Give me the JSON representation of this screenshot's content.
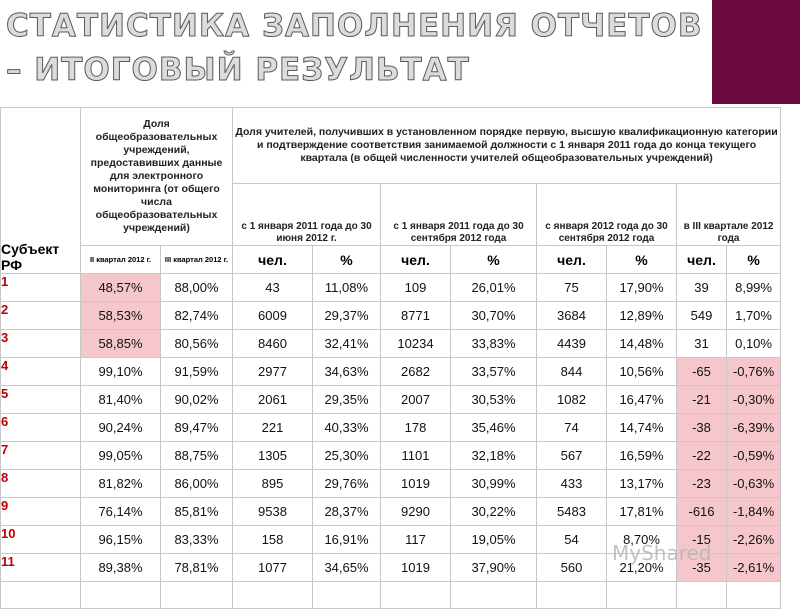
{
  "title_line1": "СТАТИСТИКА ЗАПОЛНЕНИЯ ОТЧЕТОВ",
  "title_line2": "– ИТОГОВЫЙ РЕЗУЛЬТАТ",
  "header": {
    "subject": "Субъект РФ",
    "group1": "Доля общеобразовательных учреждений, предоставивших данные для электронного мониторинга (от общего числа общеобразовательных учреждений)",
    "group2": "Доля учителей, получивших в установленном порядке первую, высшую квалификационную категории и подтверждение соответствия занимаемой должности с 1 января 2011 года до конца текущего квартала (в общей численности учителей общеобразовательных учреждений)",
    "q2": "II квартал 2012 г.",
    "q3": "III квартал 2012 г.",
    "period1": "с 1 января 2011 года до 30 июня 2012 г.",
    "period2": "с 1 января 2011 года до 30 сентября 2012 года",
    "period3": "с января 2012 года до 30 сентября 2012 года",
    "period4": "в III квартале 2012 года",
    "unit_count": "чел.",
    "unit_pct": "%"
  },
  "rows": [
    {
      "subject": "1",
      "q2": "48,57%",
      "q3": "88,00%",
      "p1c": "43",
      "p1p": "11,08%",
      "p2c": "109",
      "p2p": "26,01%",
      "p3c": "75",
      "p3p": "17,90%",
      "p4c": "39",
      "p4p": "8,99%"
    },
    {
      "subject": "2",
      "q2": "58,53%",
      "q3": "82,74%",
      "p1c": "6009",
      "p1p": "29,37%",
      "p2c": "8771",
      "p2p": "30,70%",
      "p3c": "3684",
      "p3p": "12,89%",
      "p4c": "549",
      "p4p": "1,70%"
    },
    {
      "subject": "3",
      "q2": "58,85%",
      "q3": "80,56%",
      "p1c": "8460",
      "p1p": "32,41%",
      "p2c": "10234",
      "p2p": "33,83%",
      "p3c": "4439",
      "p3p": "14,48%",
      "p4c": "31",
      "p4p": "0,10%"
    },
    {
      "subject": "4",
      "q2": "99,10%",
      "q3": "91,59%",
      "p1c": "2977",
      "p1p": "34,63%",
      "p2c": "2682",
      "p2p": "33,57%",
      "p3c": "844",
      "p3p": "10,56%",
      "p4c": "-65",
      "p4p": "-0,76%"
    },
    {
      "subject": "5",
      "q2": "81,40%",
      "q3": "90,02%",
      "p1c": "2061",
      "p1p": "29,35%",
      "p2c": "2007",
      "p2p": "30,53%",
      "p3c": "1082",
      "p3p": "16,47%",
      "p4c": "-21",
      "p4p": "-0,30%"
    },
    {
      "subject": "6",
      "q2": "90,24%",
      "q3": "89,47%",
      "p1c": "221",
      "p1p": "40,33%",
      "p2c": "178",
      "p2p": "35,46%",
      "p3c": "74",
      "p3p": "14,74%",
      "p4c": "-38",
      "p4p": "-6,39%"
    },
    {
      "subject": "7",
      "q2": "99,05%",
      "q3": "88,75%",
      "p1c": "1305",
      "p1p": "25,30%",
      "p2c": "1101",
      "p2p": "32,18%",
      "p3c": "567",
      "p3p": "16,59%",
      "p4c": "-22",
      "p4p": "-0,59%"
    },
    {
      "subject": "8",
      "q2": "81,82%",
      "q3": "86,00%",
      "p1c": "895",
      "p1p": "29,76%",
      "p2c": "1019",
      "p2p": "30,99%",
      "p3c": "433",
      "p3p": "13,17%",
      "p4c": "-23",
      "p4p": "-0,63%"
    },
    {
      "subject": "9",
      "q2": "76,14%",
      "q3": "85,81%",
      "p1c": "9538",
      "p1p": "28,37%",
      "p2c": "9290",
      "p2p": "30,22%",
      "p3c": "5483",
      "p3p": "17,81%",
      "p4c": "-616",
      "p4p": "-1,84%"
    },
    {
      "subject": "10",
      "q2": "96,15%",
      "q3": "83,33%",
      "p1c": "158",
      "p1p": "16,91%",
      "p2c": "117",
      "p2p": "19,05%",
      "p3c": "54",
      "p3p": "8,70%",
      "p4c": "-15",
      "p4p": "-2,26%"
    },
    {
      "subject": "11",
      "q2": "89,38%",
      "q3": "78,81%",
      "p1c": "1077",
      "p1p": "34,65%",
      "p2c": "1019",
      "p2p": "37,90%",
      "p3c": "560",
      "p3p": "21,20%",
      "p4c": "-35",
      "p4p": "-2,61%"
    }
  ],
  "highlight": {
    "color": "#f5c6cb",
    "q2_rows": [
      0,
      1,
      2
    ],
    "p4_rows": [
      3,
      4,
      5,
      6,
      7,
      8,
      9,
      10
    ]
  },
  "watermark": "MyShared"
}
